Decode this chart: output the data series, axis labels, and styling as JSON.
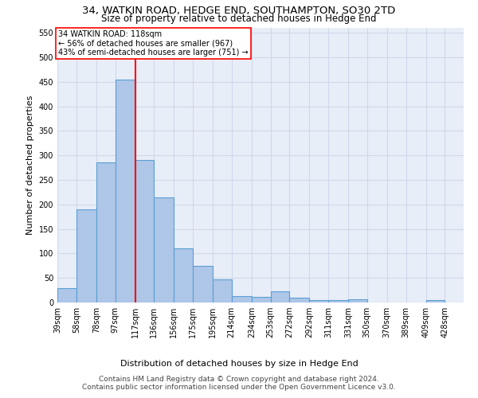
{
  "title1": "34, WATKIN ROAD, HEDGE END, SOUTHAMPTON, SO30 2TD",
  "title2": "Size of property relative to detached houses in Hedge End",
  "xlabel": "Distribution of detached houses by size in Hedge End",
  "ylabel": "Number of detached properties",
  "footer1": "Contains HM Land Registry data © Crown copyright and database right 2024.",
  "footer2": "Contains public sector information licensed under the Open Government Licence v3.0.",
  "annotation_line1": "34 WATKIN ROAD: 118sqm",
  "annotation_line2": "← 56% of detached houses are smaller (967)",
  "annotation_line3": "43% of semi-detached houses are larger (751) →",
  "bar_left_edges": [
    39,
    58,
    78,
    97,
    117,
    136,
    156,
    175,
    195,
    214,
    234,
    253,
    272,
    292,
    311,
    331,
    350,
    370,
    389,
    409
  ],
  "bar_widths": [
    19,
    20,
    19,
    20,
    19,
    20,
    19,
    20,
    19,
    20,
    19,
    19,
    20,
    19,
    20,
    19,
    20,
    19,
    20,
    19
  ],
  "bar_heights": [
    30,
    190,
    285,
    455,
    290,
    215,
    110,
    75,
    47,
    13,
    12,
    22,
    10,
    5,
    5,
    7,
    0,
    0,
    0,
    5
  ],
  "bar_color": "#aec6e8",
  "bar_edge_color": "#5a9fd4",
  "bar_edge_width": 0.8,
  "grid_color": "#d0d8e8",
  "bg_color": "#e8eef8",
  "red_line_x": 117.5,
  "ylim": [
    0,
    560
  ],
  "yticks": [
    0,
    50,
    100,
    150,
    200,
    250,
    300,
    350,
    400,
    450,
    500,
    550
  ],
  "xtick_labels": [
    "39sqm",
    "58sqm",
    "78sqm",
    "97sqm",
    "117sqm",
    "136sqm",
    "156sqm",
    "175sqm",
    "195sqm",
    "214sqm",
    "234sqm",
    "253sqm",
    "272sqm",
    "292sqm",
    "311sqm",
    "331sqm",
    "350sqm",
    "370sqm",
    "389sqm",
    "409sqm",
    "428sqm"
  ],
  "xtick_positions": [
    39,
    58,
    78,
    97,
    117,
    136,
    156,
    175,
    195,
    214,
    234,
    253,
    272,
    292,
    311,
    331,
    350,
    370,
    389,
    409,
    428
  ],
  "title_fontsize": 9.5,
  "subtitle_fontsize": 8.5,
  "axis_label_fontsize": 8,
  "tick_fontsize": 7,
  "footer_fontsize": 6.5,
  "annotation_fontsize": 7,
  "xlabel_fontsize": 8
}
